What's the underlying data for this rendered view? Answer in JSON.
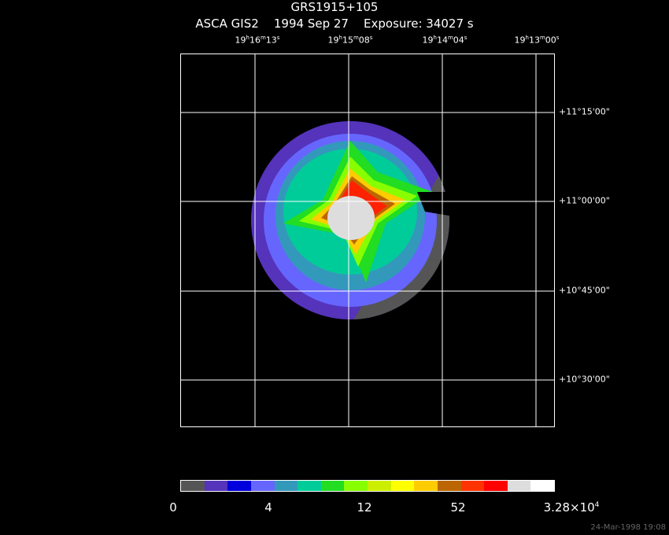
{
  "header": {
    "object": "GRS1915+105",
    "instrument": "ASCA GIS2",
    "date": "1994 Sep 27",
    "exposure": "Exposure: 34027 s"
  },
  "ra_labels": [
    {
      "h": "19",
      "m": "16",
      "s": "13"
    },
    {
      "h": "19",
      "m": "15",
      "s": "08"
    },
    {
      "h": "19",
      "m": "14",
      "s": "04"
    },
    {
      "h": "19",
      "m": "13",
      "s": "00"
    }
  ],
  "dec_labels": [
    "+11°15'00\"",
    "+11°00'00\"",
    "+10°45'00\"",
    "+10°30'00\""
  ],
  "colorbar": {
    "colors": [
      "#555555",
      "#5533bb",
      "#0000dd",
      "#6666ff",
      "#3399bb",
      "#00cc99",
      "#22dd22",
      "#88ff00",
      "#ccee00",
      "#ffff00",
      "#ffcc00",
      "#bb6600",
      "#ff3300",
      "#ff0000",
      "#dddddd",
      "#ffffff"
    ],
    "labels": [
      "0",
      "4",
      "12",
      "52"
    ],
    "max_label": "3.28×10",
    "max_exp": "4"
  },
  "footer": {
    "stamp": "24-Mar-1998 19:08"
  }
}
